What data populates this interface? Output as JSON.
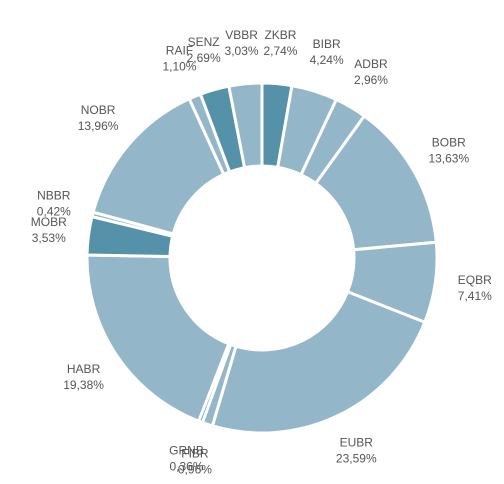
{
  "chart_data": {
    "type": "donut",
    "categories": [
      "ZKBR",
      "BIBR",
      "ADBR",
      "BOBR",
      "EQBR",
      "EUBR",
      "FIBR",
      "GRNB",
      "HABR",
      "MOBR",
      "NBBR",
      "NOBR",
      "RAIF",
      "SENZ",
      "VBBR"
    ],
    "values": [
      2.74,
      4.24,
      2.96,
      13.63,
      7.41,
      23.59,
      0.96,
      0.36,
      19.38,
      3.53,
      0.42,
      13.96,
      1.1,
      2.69,
      3.03
    ],
    "value_labels": [
      "2,74%",
      "4,24%",
      "2,96%",
      "13,63%",
      "7,41%",
      "23,59%",
      "0,96%",
      "0,36%",
      "19,38%",
      "3,53%",
      "0,42%",
      "13,96%",
      "1,10%",
      "2,69%",
      "3,03%"
    ],
    "colors": [
      "#5592aa",
      "#94b6c9",
      "#94b6c9",
      "#94b6c9",
      "#94b6c9",
      "#94b6c9",
      "#94b6c9",
      "#5592aa",
      "#94b6c9",
      "#5592aa",
      "#94b6c9",
      "#94b6c9",
      "#94b6c9",
      "#5592aa",
      "#94b6c9"
    ]
  }
}
